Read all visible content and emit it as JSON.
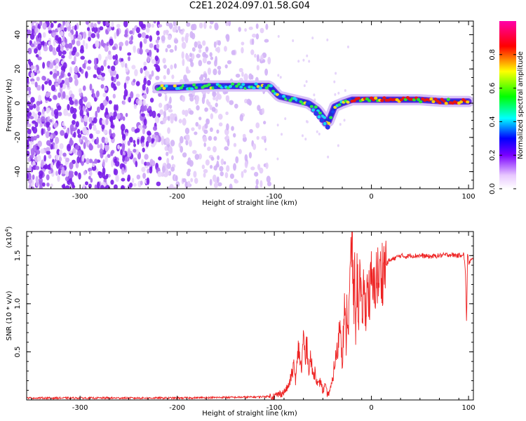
{
  "title": "C2E1.2024.097.01.58.G04",
  "chart_data": [
    {
      "type": "heatmap",
      "xlabel": "Height of straight line (km)",
      "ylabel": "Frequency (Hz)",
      "xlim": [
        -355,
        105
      ],
      "ylim": [
        -50,
        48
      ],
      "xticks": [
        -300,
        -200,
        -100,
        0,
        100
      ],
      "yticks": [
        -40,
        -20,
        0,
        20,
        40
      ],
      "xtick_labels": [
        "-300",
        "-200",
        "-100",
        "0",
        "100"
      ],
      "ytick_labels": [
        "-40",
        "-20",
        "0",
        "20",
        "40"
      ],
      "ridge": {
        "x": [
          -220,
          -200,
          -170,
          -140,
          -120,
          -105,
          -95,
          -80,
          -65,
          -55,
          -45,
          -38,
          -30,
          -20,
          -10,
          0,
          20,
          50,
          75,
          100
        ],
        "y": [
          9,
          9,
          10,
          10,
          10,
          10,
          4,
          2,
          0,
          -4,
          -12,
          -2,
          0,
          2,
          2,
          2,
          2,
          2,
          1,
          1
        ]
      },
      "colorbar": {
        "label": "Normalized spectral amplitude",
        "range": [
          0,
          1
        ],
        "ticks": [
          0.0,
          0.2,
          0.4,
          0.6,
          0.8
        ],
        "tick_labels": [
          "0.0",
          "0.2",
          "0.4",
          "0.6",
          "0.8"
        ]
      }
    },
    {
      "type": "line",
      "xlabel": "Height of straight line (km)",
      "ylabel": "SNR (10 * v/v)",
      "yscale_label": "(x10",
      "yscale_exp": "4",
      "xlim": [
        -355,
        105
      ],
      "ylim": [
        0,
        1.75
      ],
      "xticks": [
        -300,
        -200,
        -100,
        0,
        100
      ],
      "yticks": [
        0.5,
        1.0,
        1.5
      ],
      "xtick_labels": [
        "-300",
        "-200",
        "-100",
        "0",
        "100"
      ],
      "ytick_labels": [
        "0.5",
        "1.0",
        "1.5"
      ],
      "series": [
        {
          "color": "#ee2222",
          "x": [
            -355,
            -300,
            -200,
            -120,
            -100,
            -90,
            -85,
            -80,
            -78,
            -75,
            -72,
            -70,
            -68,
            -66,
            -65,
            -63,
            -60,
            -58,
            -55,
            -52,
            -50,
            -48,
            -45,
            -42,
            -40,
            -38,
            -35,
            -32,
            -30,
            -28,
            -26,
            -25,
            -24,
            -22,
            -20,
            -18,
            -17,
            -16,
            -15,
            -13,
            -12,
            -10,
            -8,
            -6,
            -4,
            -2,
            0,
            2,
            5,
            8,
            10,
            13,
            15,
            18,
            20,
            25,
            30,
            35,
            40,
            50,
            60,
            70,
            80,
            90,
            95,
            97,
            98,
            99,
            100,
            102,
            105
          ],
          "y": [
            0.02,
            0.02,
            0.02,
            0.03,
            0.04,
            0.08,
            0.15,
            0.35,
            0.2,
            0.55,
            0.3,
            0.68,
            0.4,
            0.65,
            0.3,
            0.45,
            0.25,
            0.3,
            0.15,
            0.2,
            0.08,
            0.15,
            0.05,
            0.12,
            0.2,
            0.38,
            0.5,
            0.85,
            0.4,
            0.95,
            0.6,
            1.05,
            0.7,
            1.2,
            1.75,
            0.9,
            1.45,
            0.6,
            1.35,
            0.9,
            1.25,
            0.85,
            1.15,
            0.95,
            1.2,
            1.05,
            1.25,
            1.1,
            1.3,
            1.25,
            1.32,
            1.38,
            1.4,
            1.45,
            1.45,
            1.48,
            1.5,
            1.49,
            1.5,
            1.5,
            1.49,
            1.5,
            1.51,
            1.5,
            1.52,
            1.3,
            0.75,
            1.55,
            1.42,
            1.45,
            1.46
          ]
        }
      ]
    }
  ]
}
